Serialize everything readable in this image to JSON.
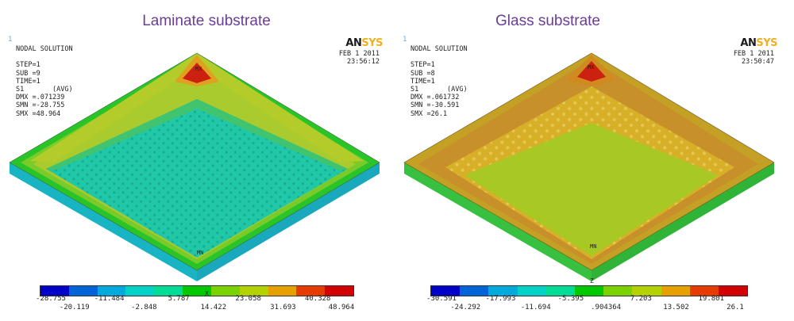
{
  "titles": {
    "left": "Laminate substrate",
    "right": "Glass substrate"
  },
  "panels": {
    "left": {
      "corner_number": "1",
      "info_lines": [
        "NODAL SOLUTION",
        "",
        "STEP=1",
        "SUB =9",
        "TIME=1",
        "S1       (AVG)",
        "DMX =.071239",
        "SMN =-28.755",
        "SMX =48.964"
      ],
      "date": "FEB  1 2011",
      "time": "23:56:12",
      "logo_a": "AN",
      "logo_b": "SYS",
      "mx_label": "MX",
      "mn_label": "MN",
      "axis_label": "X",
      "legend_colors": [
        "#0000c8",
        "#0064d8",
        "#00aadd",
        "#00d2c8",
        "#00dc96",
        "#00c800",
        "#7ad200",
        "#b4d200",
        "#e6a000",
        "#e63c00",
        "#d20000"
      ],
      "legend_top": [
        "-28.755",
        "-11.484",
        "5.787",
        "23.058",
        "40.328"
      ],
      "legend_bottom": [
        "-20.119",
        "-2.848",
        "14.422",
        "31.693",
        "48.964"
      ],
      "colors": {
        "plate_top": "#20c8a8",
        "edge_band": "#28c428",
        "band_mid": "#7acb2a",
        "band_yellow": "#c8cc30",
        "ridge_orange": "#e0a020",
        "hot": "#cc2010",
        "side": "#18b4c4"
      }
    },
    "right": {
      "corner_number": "1",
      "info_lines": [
        "NODAL SOLUTION",
        "",
        "STEP=1",
        "SUB =8",
        "TIME=1",
        "S1       (AVG)",
        "DMX =.061732",
        "SMN =-30.591",
        "SMX =26.1"
      ],
      "date": "FEB  1 2011",
      "time": "23:50:47",
      "logo_a": "AN",
      "logo_b": "SYS",
      "mx_label": "MX",
      "mn_label": "MN",
      "axis_label": "Z",
      "legend_colors": [
        "#0000c8",
        "#0064d8",
        "#00aadd",
        "#00d2c8",
        "#00dc96",
        "#00c800",
        "#7ad200",
        "#b4d200",
        "#e6a000",
        "#e63c00",
        "#d20000"
      ],
      "legend_top": [
        "-30.591",
        "-17.993",
        "-5.395",
        "7.203",
        "19.801"
      ],
      "legend_bottom": [
        "-24.292",
        "-11.694",
        ".904364",
        "13.502",
        "26.1"
      ],
      "colors": {
        "plate_top": "#a8c824",
        "edge_band": "#c4a024",
        "band_mid": "#c8c030",
        "band_yellow": "#d8b028",
        "ridge_orange": "#d08a20",
        "hot": "#cc2010",
        "side": "#38c040"
      }
    }
  }
}
